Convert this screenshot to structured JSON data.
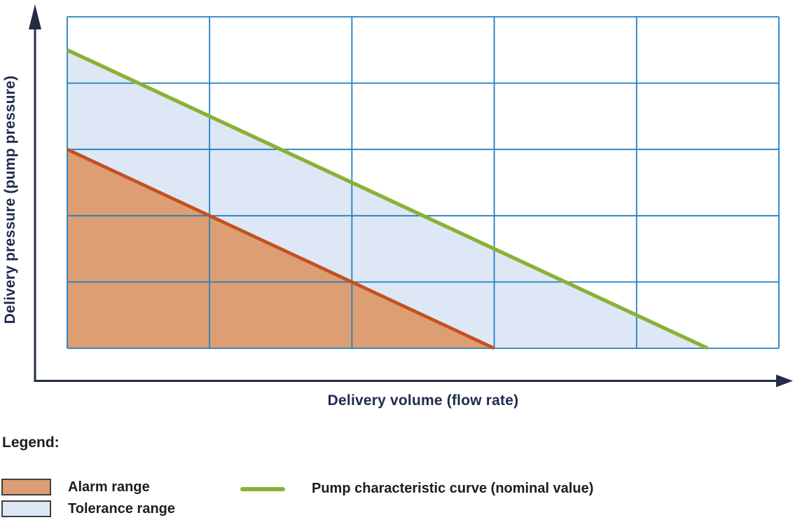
{
  "chart_data": {
    "type": "area",
    "title": "",
    "xlabel": "Delivery volume (flow rate)",
    "ylabel": "Delivery pressure (pump pressure)",
    "xlim": [
      0,
      5
    ],
    "ylim": [
      0,
      5
    ],
    "grid": true,
    "grid_color": "#237fc0",
    "axis_color": "#232c45",
    "series": [
      {
        "name": "Alarm range",
        "type": "area",
        "fill": "#dd9e74",
        "points": [
          [
            0,
            3
          ],
          [
            3,
            0
          ],
          [
            0,
            0
          ]
        ]
      },
      {
        "name": "Tolerance range",
        "type": "area",
        "fill": "#dde7f5",
        "points": [
          [
            0,
            4.5
          ],
          [
            4.5,
            0
          ],
          [
            3,
            0
          ],
          [
            0,
            3
          ]
        ]
      },
      {
        "name": "Alarm range boundary",
        "type": "line",
        "color": "#c4511d",
        "width": 4.8,
        "points": [
          [
            0,
            3
          ],
          [
            3,
            0
          ]
        ]
      },
      {
        "name": "Pump characteristic curve (nominal value)",
        "type": "line",
        "color": "#8ab136",
        "width": 5.3,
        "points": [
          [
            0,
            4.5
          ],
          [
            4.5,
            0
          ]
        ]
      }
    ]
  },
  "legend": {
    "heading": "Legend:",
    "items": [
      {
        "label": "Alarm range",
        "swatch_type": "area",
        "color": "#dd9e74",
        "border": "#3f3f3e"
      },
      {
        "label": "Tolerance range",
        "swatch_type": "area",
        "color": "#dde7f5",
        "border": "#3f3f3e"
      },
      {
        "label": "Pump characteristic curve (nominal value)",
        "swatch_type": "line",
        "color": "#8ab136"
      }
    ]
  },
  "colors": {
    "axis_text": "#1f2a4d",
    "legend_text": "#1d1d1b",
    "background": "#ffffff"
  }
}
